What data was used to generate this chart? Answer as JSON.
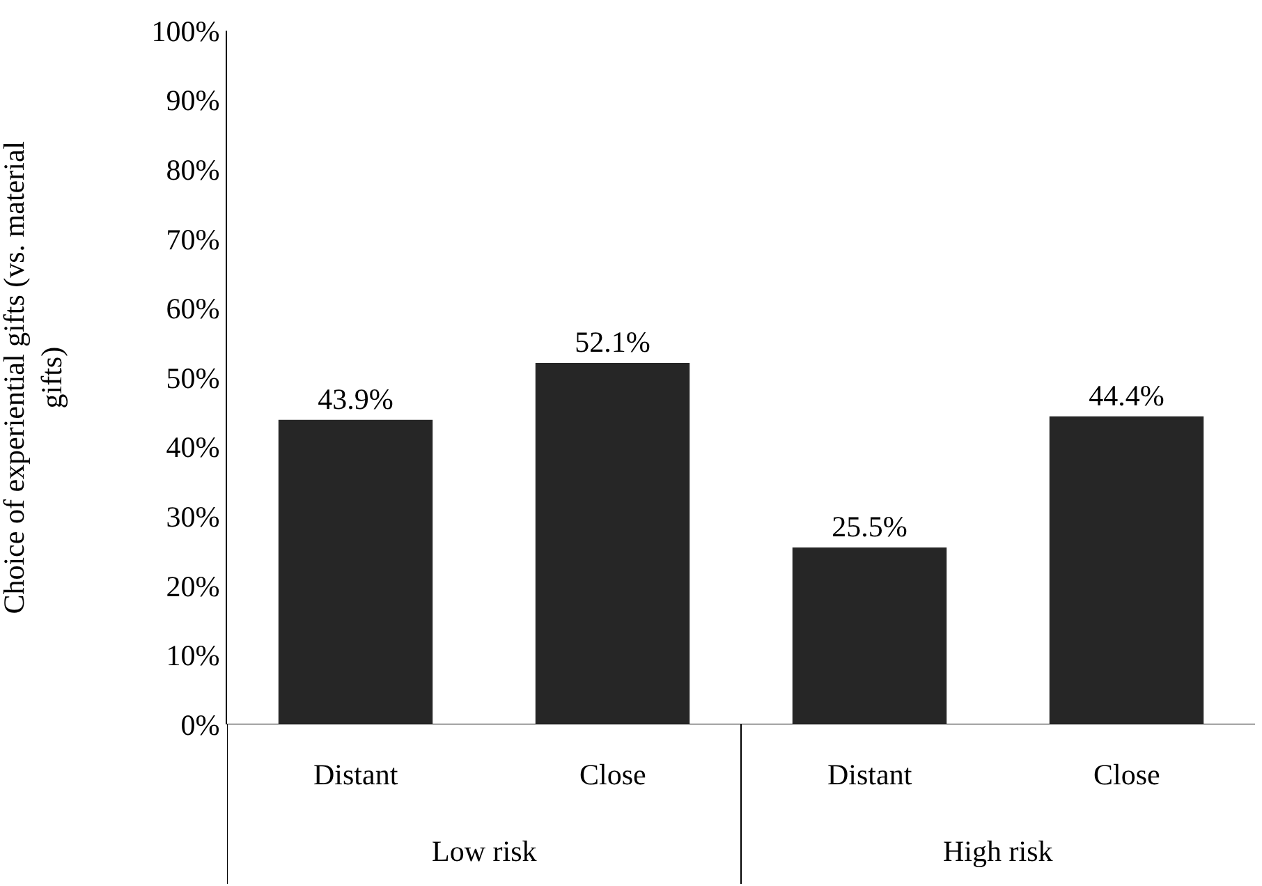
{
  "chart_data": {
    "type": "bar",
    "ylabel": "Choice of experiential gifts (vs. material gifts)",
    "categories": [
      "Distant",
      "Close",
      "Distant",
      "Close"
    ],
    "values": [
      43.9,
      52.1,
      25.5,
      44.4
    ],
    "value_labels": [
      "43.9%",
      "52.1%",
      "25.5%",
      "44.4%"
    ],
    "color": "#262626",
    "ylim": [
      0,
      100
    ],
    "yticks": [
      {
        "value": 0,
        "label": "0%"
      },
      {
        "value": 10,
        "label": "10%"
      },
      {
        "value": 20,
        "label": "20%"
      },
      {
        "value": 30,
        "label": "30%"
      },
      {
        "value": 40,
        "label": "40%"
      },
      {
        "value": 50,
        "label": "50%"
      },
      {
        "value": 60,
        "label": "60%"
      },
      {
        "value": 70,
        "label": "70%"
      },
      {
        "value": 80,
        "label": "80%"
      },
      {
        "value": 90,
        "label": "90%"
      },
      {
        "value": 100,
        "label": "100%"
      }
    ],
    "annotations": [
      "Low risk",
      "High risk"
    ],
    "grid": false,
    "legend": false
  }
}
